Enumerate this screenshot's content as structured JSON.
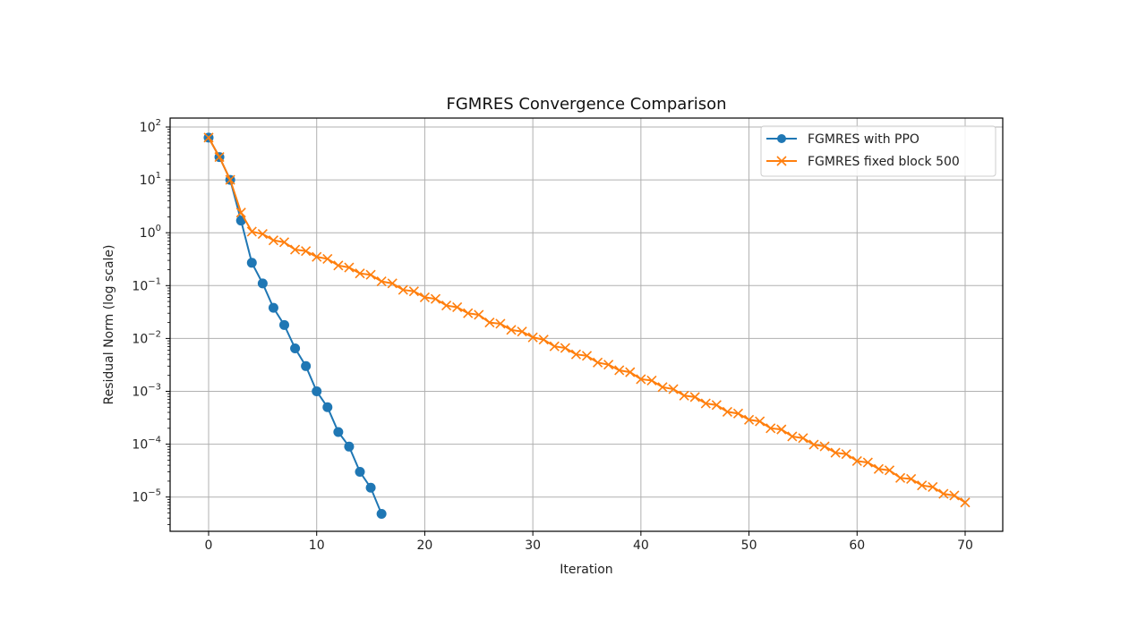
{
  "chart_data": {
    "type": "line",
    "title": "FGMRES Convergence Comparison",
    "xlabel": "Iteration",
    "ylabel": "Residual Norm (log scale)",
    "yscale": "log",
    "xlim": [
      -3.5,
      73.5
    ],
    "ylim": [
      2.2e-06,
      200
    ],
    "x_ticks": [
      0,
      10,
      20,
      30,
      40,
      50,
      60,
      70
    ],
    "y_ticks": [
      "10^2",
      "10^1",
      "10^0",
      "10^-1",
      "10^-2",
      "10^-3",
      "10^-4",
      "10^-5"
    ],
    "grid": true,
    "legend_position": "upper right",
    "series": [
      {
        "name": "FGMRES with PPO",
        "color": "#1f77b4",
        "marker": "o",
        "x": [
          0,
          1,
          2,
          3,
          4,
          5,
          6,
          7,
          8,
          9,
          10,
          11,
          12,
          13,
          14,
          15,
          16
        ],
        "values": [
          63,
          27,
          10,
          1.7,
          0.27,
          0.11,
          0.038,
          0.018,
          0.0065,
          0.003,
          0.001,
          0.0005,
          0.00017,
          9e-05,
          3e-05,
          1.5e-05,
          4.8e-06
        ]
      },
      {
        "name": "FGMRES fixed block 500",
        "color": "#ff7f0e",
        "marker": "x",
        "x": [
          0,
          1,
          2,
          3,
          4,
          5,
          6,
          7,
          8,
          9,
          10,
          11,
          12,
          13,
          14,
          15,
          16,
          17,
          18,
          19,
          20,
          21,
          22,
          23,
          24,
          25,
          26,
          27,
          28,
          29,
          30,
          31,
          32,
          33,
          34,
          35,
          36,
          37,
          38,
          39,
          40,
          41,
          42,
          43,
          44,
          45,
          46,
          47,
          48,
          49,
          50,
          51,
          52,
          53,
          54,
          55,
          56,
          57,
          58,
          59,
          60,
          61,
          62,
          63,
          64,
          65,
          66,
          67,
          68,
          69,
          70
        ],
        "values": [
          63,
          27,
          10,
          2.4,
          1.05,
          0.95,
          0.72,
          0.66,
          0.48,
          0.45,
          0.35,
          0.32,
          0.24,
          0.22,
          0.17,
          0.16,
          0.12,
          0.11,
          0.083,
          0.078,
          0.06,
          0.056,
          0.042,
          0.039,
          0.03,
          0.028,
          0.02,
          0.019,
          0.0145,
          0.0135,
          0.0105,
          0.0095,
          0.0071,
          0.0066,
          0.005,
          0.0047,
          0.0035,
          0.0032,
          0.0025,
          0.0023,
          0.0017,
          0.0016,
          0.0012,
          0.0011,
          0.00083,
          0.00078,
          0.00059,
          0.00055,
          0.00041,
          0.00038,
          0.00029,
          0.00027,
          0.0002,
          0.00019,
          0.00014,
          0.00013,
          9.8e-05,
          9.1e-05,
          6.9e-05,
          6.5e-05,
          4.8e-05,
          4.5e-05,
          3.4e-05,
          3.2e-05,
          2.3e-05,
          2.2e-05,
          1.66e-05,
          1.55e-05,
          1.15e-05,
          1.07e-05,
          7.9e-06
        ]
      }
    ]
  }
}
